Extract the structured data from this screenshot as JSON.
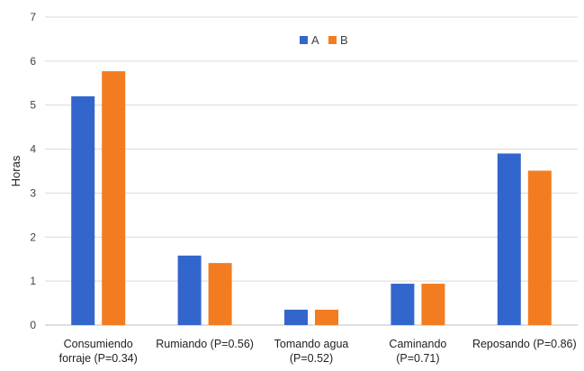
{
  "chart_data": {
    "type": "bar",
    "title": "",
    "xlabel": "",
    "ylabel": "Horas",
    "ylim": [
      0,
      7
    ],
    "yticks": [
      "0",
      "1",
      "2",
      "3",
      "4",
      "5",
      "6",
      "7"
    ],
    "grid": true,
    "legend_position": "top-center",
    "categories": [
      [
        "Consumiendo",
        "forraje (P=0.34)"
      ],
      [
        "Rumiando (P=0.56)"
      ],
      [
        "Tomando agua",
        "(P=0.52)"
      ],
      [
        "Caminando",
        "(P=0.71)"
      ],
      [
        "Reposando (P=0.86)"
      ]
    ],
    "series": [
      {
        "name": "A",
        "color": "#3366cc",
        "values": [
          5.2,
          1.58,
          0.35,
          0.94,
          3.9
        ]
      },
      {
        "name": "B",
        "color": "#f47c20",
        "values": [
          5.77,
          1.41,
          0.35,
          0.94,
          3.51
        ]
      }
    ]
  }
}
